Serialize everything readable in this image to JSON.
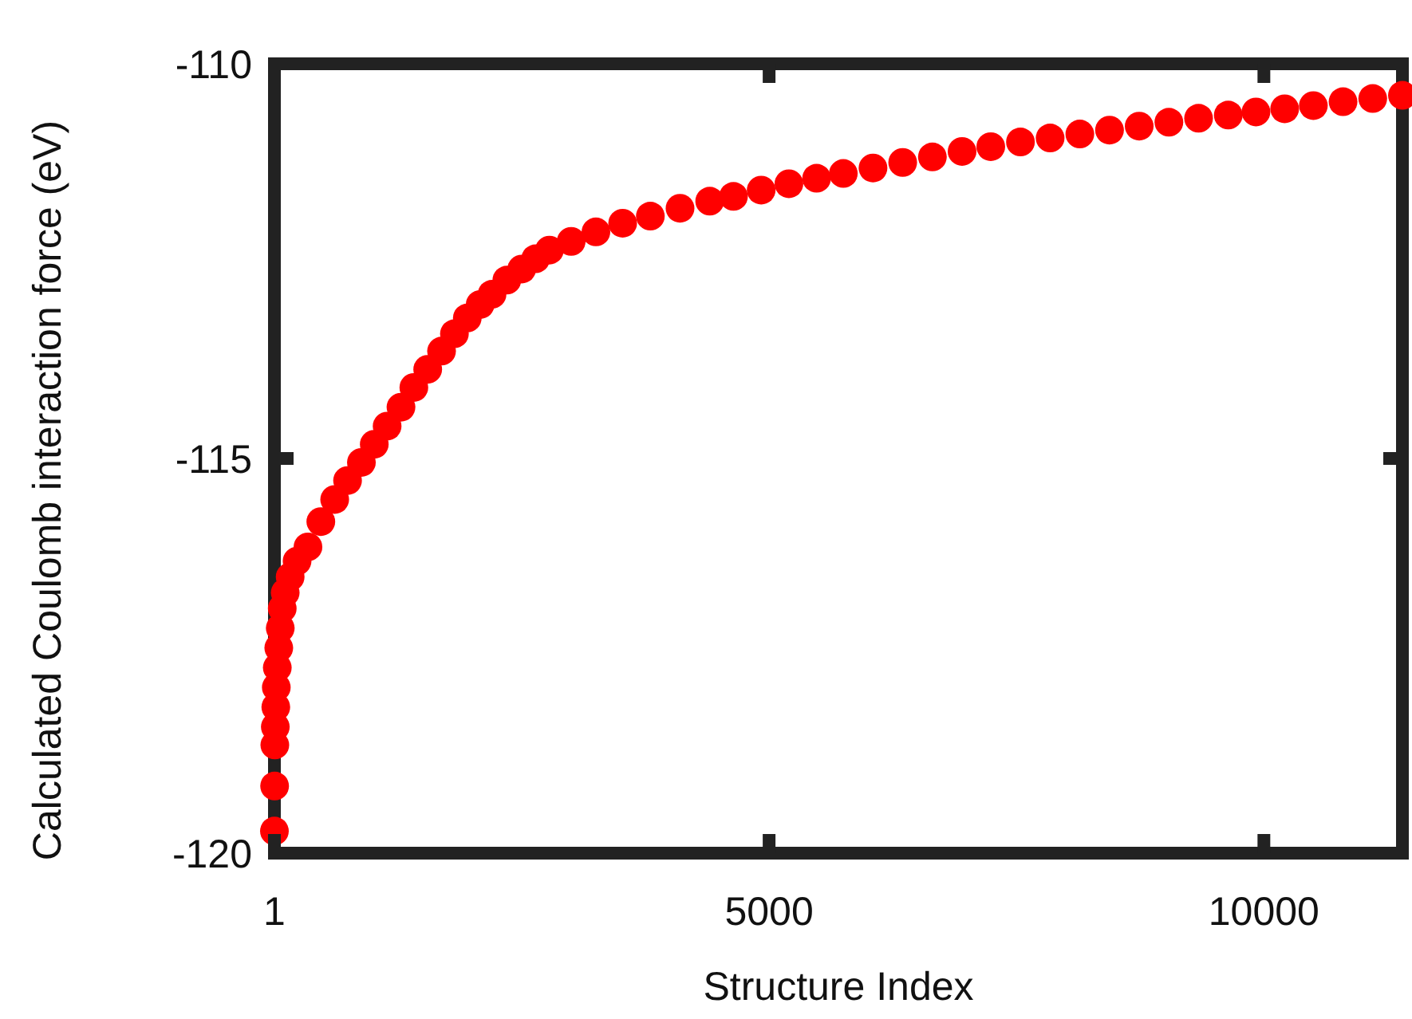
{
  "chart_data": {
    "type": "scatter",
    "xlabel": "Structure Index",
    "ylabel": "Calculated Coulomb interaction force (eV)",
    "xlim": [
      1,
      11400
    ],
    "xticks": [
      1,
      5000,
      10000
    ],
    "ylim": [
      -120,
      -110
    ],
    "yticks": [
      -120,
      -115,
      -110
    ],
    "grid": false,
    "marker": "circle",
    "series": [
      {
        "color": "#ff0000",
        "x": [
          1,
          3,
          5,
          10,
          15,
          20,
          30,
          45,
          60,
          80,
          110,
          160,
          230,
          340,
          470,
          610,
          740,
          880,
          1010,
          1140,
          1280,
          1410,
          1550,
          1690,
          1820,
          1950,
          2080,
          2200,
          2350,
          2500,
          2640,
          2780,
          3000,
          3250,
          3520,
          3800,
          4100,
          4400,
          4640,
          4920,
          5200,
          5480,
          5750,
          6050,
          6350,
          6650,
          6950,
          7240,
          7540,
          7840,
          8140,
          8440,
          8740,
          9040,
          9340,
          9640,
          9920,
          10210,
          10500,
          10800,
          11100,
          11400
        ],
        "values": [
          -119.72,
          -119.15,
          -118.63,
          -118.4,
          -118.15,
          -117.9,
          -117.65,
          -117.4,
          -117.15,
          -116.9,
          -116.7,
          -116.5,
          -116.3,
          -116.12,
          -115.8,
          -115.52,
          -115.28,
          -115.05,
          -114.82,
          -114.59,
          -114.35,
          -114.1,
          -113.87,
          -113.64,
          -113.42,
          -113.22,
          -113.05,
          -112.92,
          -112.74,
          -112.6,
          -112.47,
          -112.36,
          -112.25,
          -112.13,
          -112.02,
          -111.93,
          -111.83,
          -111.74,
          -111.68,
          -111.6,
          -111.52,
          -111.45,
          -111.39,
          -111.32,
          -111.25,
          -111.18,
          -111.11,
          -111.05,
          -110.99,
          -110.94,
          -110.89,
          -110.84,
          -110.79,
          -110.74,
          -110.69,
          -110.65,
          -110.61,
          -110.57,
          -110.53,
          -110.48,
          -110.44,
          -110.4
        ]
      }
    ]
  }
}
